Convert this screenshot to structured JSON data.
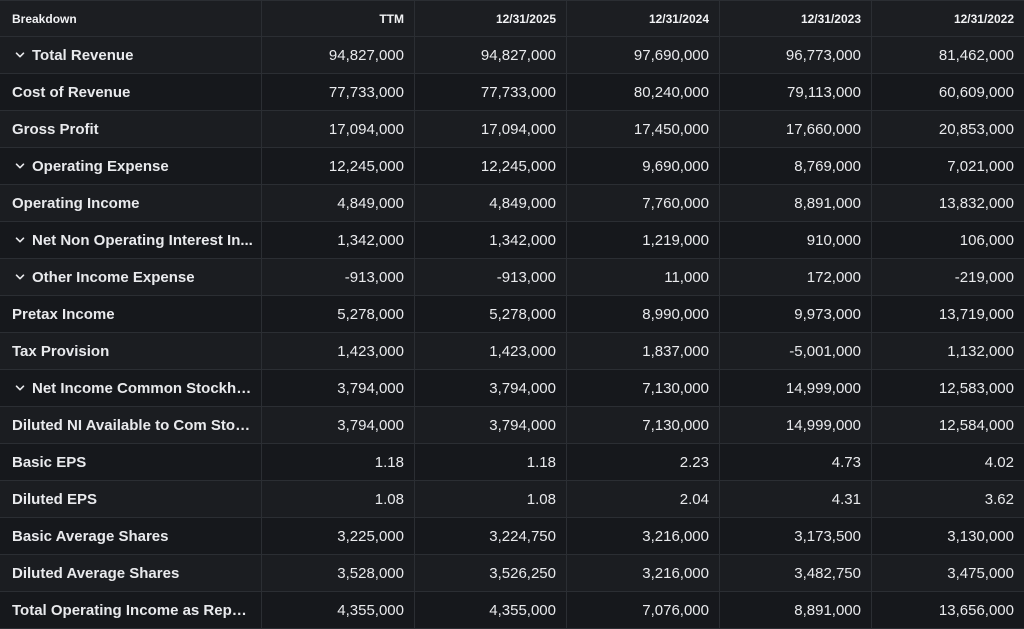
{
  "table": {
    "columns": [
      "Breakdown",
      "TTM",
      "12/31/2025",
      "12/31/2024",
      "12/31/2023",
      "12/31/2022"
    ],
    "rows": [
      {
        "label": "Total Revenue",
        "expandable": true,
        "values": [
          "94,827,000",
          "94,827,000",
          "97,690,000",
          "96,773,000",
          "81,462,000"
        ]
      },
      {
        "label": "Cost of Revenue",
        "expandable": false,
        "values": [
          "77,733,000",
          "77,733,000",
          "80,240,000",
          "79,113,000",
          "60,609,000"
        ]
      },
      {
        "label": "Gross Profit",
        "expandable": false,
        "values": [
          "17,094,000",
          "17,094,000",
          "17,450,000",
          "17,660,000",
          "20,853,000"
        ]
      },
      {
        "label": "Operating Expense",
        "expandable": true,
        "values": [
          "12,245,000",
          "12,245,000",
          "9,690,000",
          "8,769,000",
          "7,021,000"
        ]
      },
      {
        "label": "Operating Income",
        "expandable": false,
        "values": [
          "4,849,000",
          "4,849,000",
          "7,760,000",
          "8,891,000",
          "13,832,000"
        ]
      },
      {
        "label": "Net Non Operating Interest In...",
        "expandable": true,
        "values": [
          "1,342,000",
          "1,342,000",
          "1,219,000",
          "910,000",
          "106,000"
        ]
      },
      {
        "label": "Other Income Expense",
        "expandable": true,
        "values": [
          "-913,000",
          "-913,000",
          "11,000",
          "172,000",
          "-219,000"
        ]
      },
      {
        "label": "Pretax Income",
        "expandable": false,
        "values": [
          "5,278,000",
          "5,278,000",
          "8,990,000",
          "9,973,000",
          "13,719,000"
        ]
      },
      {
        "label": "Tax Provision",
        "expandable": false,
        "values": [
          "1,423,000",
          "1,423,000",
          "1,837,000",
          "-5,001,000",
          "1,132,000"
        ]
      },
      {
        "label": "Net Income Common Stockho...",
        "expandable": true,
        "values": [
          "3,794,000",
          "3,794,000",
          "7,130,000",
          "14,999,000",
          "12,583,000"
        ]
      },
      {
        "label": "Diluted NI Available to Com Stoc...",
        "expandable": false,
        "values": [
          "3,794,000",
          "3,794,000",
          "7,130,000",
          "14,999,000",
          "12,584,000"
        ]
      },
      {
        "label": "Basic EPS",
        "expandable": false,
        "values": [
          "1.18",
          "1.18",
          "2.23",
          "4.73",
          "4.02"
        ]
      },
      {
        "label": "Diluted EPS",
        "expandable": false,
        "values": [
          "1.08",
          "1.08",
          "2.04",
          "4.31",
          "3.62"
        ]
      },
      {
        "label": "Basic Average Shares",
        "expandable": false,
        "values": [
          "3,225,000",
          "3,224,750",
          "3,216,000",
          "3,173,500",
          "3,130,000"
        ]
      },
      {
        "label": "Diluted Average Shares",
        "expandable": false,
        "values": [
          "3,528,000",
          "3,526,250",
          "3,216,000",
          "3,482,750",
          "3,475,000"
        ]
      },
      {
        "label": "Total Operating Income as Repor...",
        "expandable": false,
        "values": [
          "4,355,000",
          "4,355,000",
          "7,076,000",
          "8,891,000",
          "13,656,000"
        ]
      }
    ]
  },
  "icons": {
    "expand": "chevron-down-icon"
  },
  "colors": {
    "background": "#16181c",
    "row_alt": "#1b1d21",
    "border": "#2b2e33",
    "text": "#e9eaed"
  }
}
